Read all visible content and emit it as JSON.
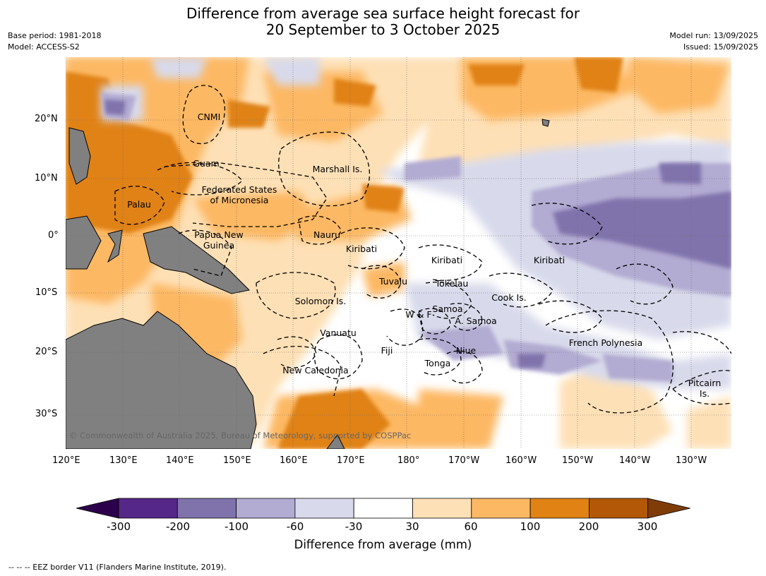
{
  "title": {
    "line1": "Difference from average sea surface height forecast for",
    "line2": "20 September to 3 October 2025"
  },
  "meta_left": {
    "base_period": "Base period: 1981-2018",
    "model": "Model: ACCESS-S2"
  },
  "meta_right": {
    "model_run": "Model run: 13/09/2025",
    "issued": "Issued: 15/09/2025"
  },
  "map": {
    "lat_ticks": [
      "20°N",
      "10°N",
      "0°",
      "10°S",
      "20°S",
      "30°S"
    ],
    "lon_ticks": [
      "120°E",
      "130°E",
      "140°E",
      "150°E",
      "160°E",
      "170°E",
      "180°",
      "170°W",
      "160°W",
      "150°W",
      "140°W",
      "130°W"
    ],
    "regions": [
      {
        "name": "CNMI"
      },
      {
        "name": "Guam"
      },
      {
        "name": "Marshall Is."
      },
      {
        "name": "Federated States"
      },
      {
        "name": "of Micronesia"
      },
      {
        "name": "Palau"
      },
      {
        "name": "Papua New"
      },
      {
        "name": "Guinea"
      },
      {
        "name": "Nauru"
      },
      {
        "name": "Kiribati"
      },
      {
        "name": "Kiribati"
      },
      {
        "name": "Kiribati"
      },
      {
        "name": "Tuvalu"
      },
      {
        "name": "Tokelau"
      },
      {
        "name": "Cook Is."
      },
      {
        "name": "Solomon Is."
      },
      {
        "name": "W & F"
      },
      {
        "name": "Samoa"
      },
      {
        "name": "A. Samoa"
      },
      {
        "name": "Vanuatu"
      },
      {
        "name": "Fiji"
      },
      {
        "name": "Niue"
      },
      {
        "name": "Tonga"
      },
      {
        "name": "French Polynesia"
      },
      {
        "name": "New Caledonia"
      },
      {
        "name": "Pitcairn"
      },
      {
        "name": "Is."
      }
    ],
    "copyright": "© Commonwealth of Australia 2025, Bureau of Meteorology, supported by COSPPac",
    "land_color": "#808080"
  },
  "legend": {
    "title": "Difference from average (mm)",
    "bins": [
      {
        "color": "#2d004b"
      },
      {
        "color": "#542788"
      },
      {
        "color": "#8073ac"
      },
      {
        "color": "#b2abd2"
      },
      {
        "color": "#d8daeb"
      },
      {
        "color": "#ffffff"
      },
      {
        "color": "#fee0b6"
      },
      {
        "color": "#fdb863"
      },
      {
        "color": "#e08214"
      },
      {
        "color": "#b35806"
      },
      {
        "color": "#7f3b08"
      }
    ],
    "tick_labels": [
      "-300",
      "-200",
      "-100",
      "-60",
      "-30",
      "30",
      "60",
      "100",
      "200",
      "300"
    ]
  },
  "footer": "--  --  -- EEZ border V11 (Flanders Marine Institute, 2019)."
}
